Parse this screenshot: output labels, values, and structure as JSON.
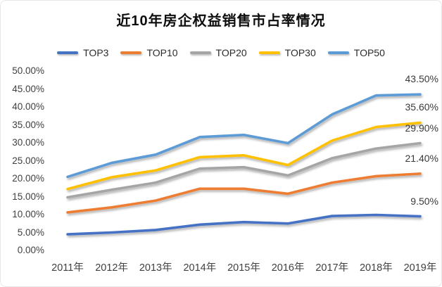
{
  "chart": {
    "title": "近10年房企权益销售市占率情况"
  },
  "chart_data": {
    "type": "line",
    "title": "近10年房企权益销售市占率情况",
    "categories": [
      "2011年",
      "2012年",
      "2013年",
      "2014年",
      "2015年",
      "2016年",
      "2017年",
      "2018年",
      "2019年"
    ],
    "y_ticks": [
      "50.00%",
      "45.00%",
      "40.00%",
      "35.00%",
      "30.00%",
      "25.00%",
      "20.00%",
      "15.00%",
      "10.00%",
      "5.00%",
      "0.00%"
    ],
    "ylim": [
      0,
      50
    ],
    "y_tick_step": 5,
    "unit": "percent",
    "grid": false,
    "legend_position": "top-center",
    "series": [
      {
        "name": "TOP3",
        "color": "#4472C4",
        "values": [
          4.5,
          5.0,
          5.7,
          7.2,
          7.9,
          7.5,
          9.6,
          9.9,
          9.5
        ],
        "end_label": "9.50%"
      },
      {
        "name": "TOP10",
        "color": "#ED7D31",
        "values": [
          10.6,
          12.0,
          13.9,
          17.2,
          17.2,
          15.8,
          18.9,
          20.7,
          21.4
        ],
        "end_label": "21.40%"
      },
      {
        "name": "TOP20",
        "color": "#A5A5A5",
        "values": [
          14.8,
          16.9,
          18.9,
          22.8,
          23.2,
          20.9,
          25.7,
          28.4,
          29.9
        ],
        "end_label": "29.90%"
      },
      {
        "name": "TOP30",
        "color": "#FFC000",
        "values": [
          17.1,
          20.4,
          22.3,
          26.0,
          26.5,
          23.8,
          30.6,
          34.4,
          35.6
        ],
        "end_label": "35.60%"
      },
      {
        "name": "TOP50",
        "color": "#5B9BD5",
        "values": [
          20.5,
          24.4,
          26.7,
          31.6,
          32.2,
          29.9,
          37.9,
          43.2,
          43.5
        ],
        "end_label": "43.50%"
      }
    ]
  }
}
